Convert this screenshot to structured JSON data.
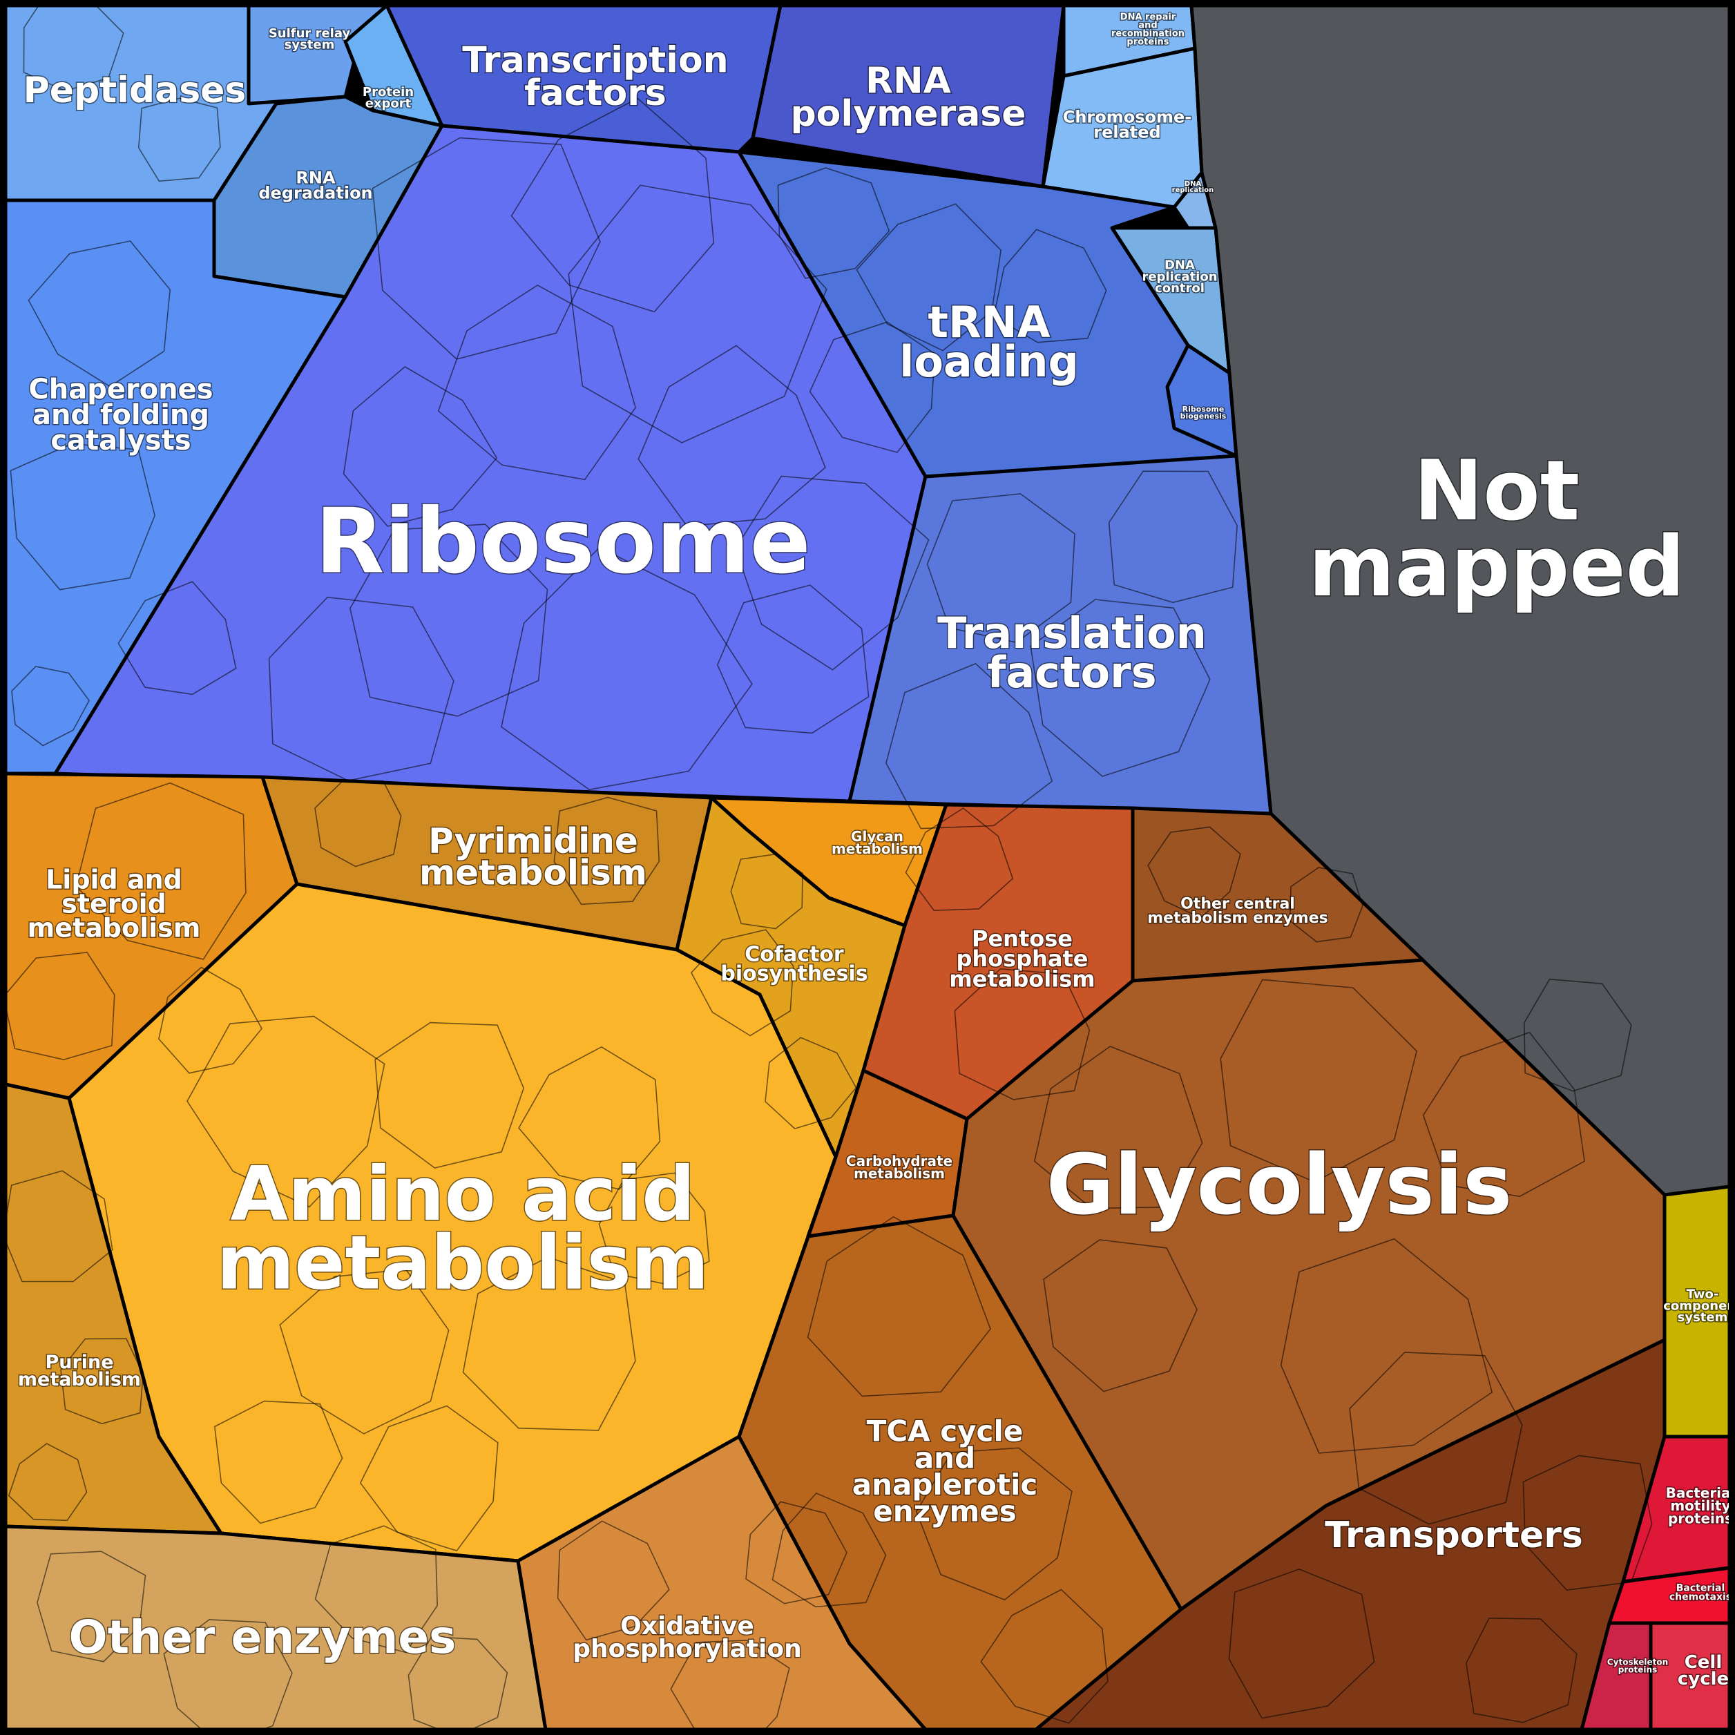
{
  "categories": [
    {
      "id": "peptidases",
      "lines": [
        "Peptidases"
      ],
      "color": "#6fa8f0"
    },
    {
      "id": "sulfur-relay",
      "lines": [
        "Sulfur relay",
        "system"
      ],
      "color": "#6aa0ee"
    },
    {
      "id": "protein-export",
      "lines": [
        "Protein",
        "export"
      ],
      "color": "#6bb0f2"
    },
    {
      "id": "rna-degradation",
      "lines": [
        "RNA",
        "degradation"
      ],
      "color": "#5b92dc"
    },
    {
      "id": "transcription-factors",
      "lines": [
        "Transcription",
        "factors"
      ],
      "color": "#4a5fd6"
    },
    {
      "id": "rna-polymerase",
      "lines": [
        "RNA",
        "polymerase"
      ],
      "color": "#4b58cc"
    },
    {
      "id": "dna-repair",
      "lines": [
        "DNA repair",
        "and",
        "recombination",
        "proteins"
      ],
      "color": "#7fb8f4"
    },
    {
      "id": "chromosome-related",
      "lines": [
        "Chromosome-",
        "related"
      ],
      "color": "#82bbf6"
    },
    {
      "id": "dna-replication",
      "lines": [
        "DNA",
        "replication"
      ],
      "color": "#86b6ec"
    },
    {
      "id": "dna-replication-control",
      "lines": [
        "DNA",
        "replication",
        "control"
      ],
      "color": "#78b0e4"
    },
    {
      "id": "ribosome-biogenesis",
      "lines": [
        "Ribosome",
        "biogenesis"
      ],
      "color": "#4f78e0"
    },
    {
      "id": "chaperones",
      "lines": [
        "Chaperones",
        "and folding",
        "catalysts"
      ],
      "color": "#5a90f4"
    },
    {
      "id": "ribosome",
      "lines": [
        "Ribosome"
      ],
      "color": "#6470f2"
    },
    {
      "id": "trna-loading",
      "lines": [
        "tRNA",
        "loading"
      ],
      "color": "#4e74dc"
    },
    {
      "id": "translation-factors",
      "lines": [
        "Translation",
        "factors"
      ],
      "color": "#5a78dc"
    },
    {
      "id": "not-mapped",
      "lines": [
        "Not",
        "mapped"
      ],
      "color": "#53565a"
    },
    {
      "id": "lipid",
      "lines": [
        "Lipid and",
        "steroid",
        "metabolism"
      ],
      "color": "#e8901c"
    },
    {
      "id": "pyrimidine",
      "lines": [
        "Pyrimidine",
        "metabolism"
      ],
      "color": "#d08a22"
    },
    {
      "id": "glycan",
      "lines": [
        "Glycan",
        "metabolism"
      ],
      "color": "#f09a18"
    },
    {
      "id": "cofactor",
      "lines": [
        "Cofactor",
        "biosynthesis"
      ],
      "color": "#e3a21e"
    },
    {
      "id": "pentose",
      "lines": [
        "Pentose",
        "phosphate",
        "metabolism"
      ],
      "color": "#c85428"
    },
    {
      "id": "other-central",
      "lines": [
        "Other central",
        "metabolism enzymes"
      ],
      "color": "#9c5422"
    },
    {
      "id": "amino-acid",
      "lines": [
        "Amino acid",
        "metabolism"
      ],
      "color": "#fbb52a"
    },
    {
      "id": "carbohydrate",
      "lines": [
        "Carbohydrate",
        "metabolism"
      ],
      "color": "#c4641c"
    },
    {
      "id": "glycolysis",
      "lines": [
        "Glycolysis"
      ],
      "color": "#a85c26"
    },
    {
      "id": "purine",
      "lines": [
        "Purine",
        "metabolism"
      ],
      "color": "#d89626"
    },
    {
      "id": "two-component",
      "lines": [
        "Two-",
        "component",
        "system"
      ],
      "color": "#c8b400"
    },
    {
      "id": "tca",
      "lines": [
        "TCA cycle",
        "and",
        "anaplerotic",
        "enzymes"
      ],
      "color": "#b8661e"
    },
    {
      "id": "transporters",
      "lines": [
        "Transporters"
      ],
      "color": "#7e3816"
    },
    {
      "id": "motility",
      "lines": [
        "Bacterial",
        "motility",
        "proteins"
      ],
      "color": "#e01838"
    },
    {
      "id": "chemotaxis",
      "lines": [
        "Bacterial",
        "chemotaxis"
      ],
      "color": "#f01030"
    },
    {
      "id": "other-enzymes",
      "lines": [
        "Other enzymes"
      ],
      "color": "#d4a45e"
    },
    {
      "id": "oxphos",
      "lines": [
        "Oxidative",
        "phosphorylation"
      ],
      "color": "#d88a3c"
    },
    {
      "id": "cytoskeleton",
      "lines": [
        "Cytoskeleton",
        "proteins"
      ],
      "color": "#cc2448"
    },
    {
      "id": "cell-cycle",
      "lines": [
        "Cell",
        "cycle"
      ],
      "color": "#e03048"
    }
  ]
}
